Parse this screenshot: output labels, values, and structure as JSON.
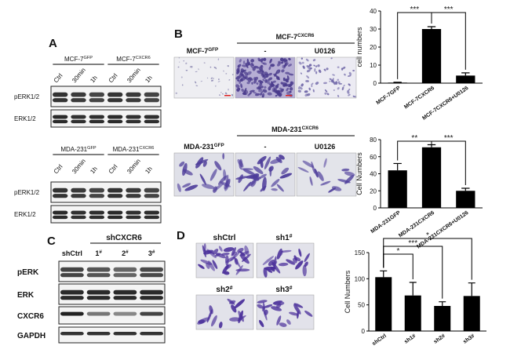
{
  "panels": {
    "a": {
      "label": "A",
      "blot1": {
        "groups": [
          {
            "text": "MCF-7",
            "sup": "GFP"
          },
          {
            "text": "MCF-7",
            "sup": "CXCR6"
          }
        ],
        "lanes": [
          "Ctrl",
          "30min",
          "1h",
          "Ctrl",
          "30min",
          "1h"
        ],
        "rows": [
          "pERK1/2",
          "ERK1/2"
        ]
      },
      "blot2": {
        "groups": [
          {
            "text": "MDA-231",
            "sup": "GFP"
          },
          {
            "text": "MDA-231",
            "sup": "CXCR6"
          }
        ],
        "lanes": [
          "Ctrl",
          "30min",
          "1h",
          "Ctrl",
          "30min",
          "1h"
        ],
        "rows": [
          "pERK1/2",
          "ERK1/2"
        ]
      }
    },
    "b": {
      "label": "B",
      "top": {
        "control": {
          "text": "MCF-7",
          "sup": "GFP"
        },
        "group": {
          "text": "MCF-7",
          "sup": "CXCR6"
        },
        "conditions": [
          "-",
          "U0126"
        ]
      },
      "bottom": {
        "control": {
          "text": "MDA-231",
          "sup": "GFP"
        },
        "group": {
          "text": "MDA-231",
          "sup": "CXCR6"
        },
        "conditions": [
          "-",
          "U0126"
        ]
      }
    },
    "c": {
      "label": "C",
      "group": "shCXCR6",
      "lanes": [
        {
          "text": "shCtrl"
        },
        {
          "text": "1",
          "sup": "#"
        },
        {
          "text": "2",
          "sup": "#"
        },
        {
          "text": "3",
          "sup": "#"
        }
      ],
      "rows": [
        "pERK",
        "ERK",
        "CXCR6",
        "GAPDH"
      ]
    },
    "d": {
      "label": "D",
      "images": [
        {
          "text": "shCtrl"
        },
        {
          "text": "sh1",
          "sup": "#"
        },
        {
          "text": "sh2",
          "sup": "#"
        },
        {
          "text": "sh3",
          "sup": "#"
        }
      ]
    }
  },
  "chart_data": [
    {
      "type": "bar",
      "ylabel": "cell numbers",
      "categories": [
        "MCF-7GFP",
        "MCF-7CXCR6",
        "MCF-7CXCR6+U0126"
      ],
      "values": [
        0.3,
        30,
        4.2
      ],
      "errors": [
        0.2,
        1.3,
        1.5
      ],
      "color": "#000000",
      "ylim": [
        0,
        40
      ],
      "yticks": [
        0,
        10,
        20,
        30,
        40
      ],
      "significance": [
        {
          "from": 0,
          "to": 1,
          "label": "***"
        },
        {
          "from": 1,
          "to": 2,
          "label": "***"
        }
      ]
    },
    {
      "type": "bar",
      "ylabel": "Cell Numbers",
      "categories": [
        "MDA-231GFP",
        "MDA-231CXCR6",
        "MDA-231CXCR6+U0126"
      ],
      "values": [
        44,
        71,
        20
      ],
      "errors": [
        8,
        3,
        3
      ],
      "color": "#000000",
      "ylim": [
        0,
        80
      ],
      "yticks": [
        0,
        20,
        40,
        60,
        80
      ],
      "significance": [
        {
          "from": 0,
          "to": 1,
          "label": "**"
        },
        {
          "from": 1,
          "to": 2,
          "label": "***"
        }
      ]
    },
    {
      "type": "bar",
      "ylabel": "Cell Numbers",
      "categories": [
        "shCtrl",
        "sh1#",
        "sh2#",
        "sh3#"
      ],
      "values": [
        103,
        68,
        48,
        67
      ],
      "errors": [
        12,
        25,
        8,
        25
      ],
      "color": "#000000",
      "ylim": [
        0,
        150
      ],
      "yticks": [
        0,
        50,
        100,
        150
      ],
      "significance": [
        {
          "from": 0,
          "to": 1,
          "label": "*"
        },
        {
          "from": 0,
          "to": 2,
          "label": "***"
        },
        {
          "from": 0,
          "to": 3,
          "label": "*"
        }
      ]
    }
  ]
}
